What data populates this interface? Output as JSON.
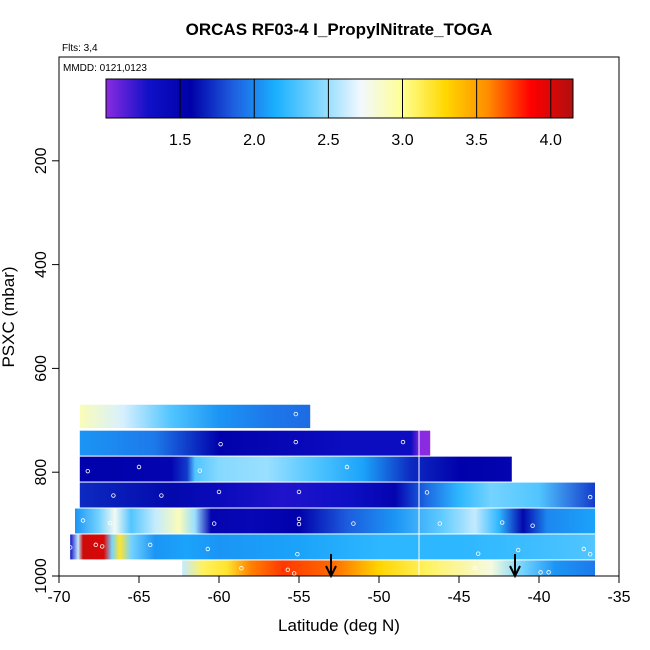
{
  "chart_data": {
    "type": "heatmap",
    "title": "ORCAS RF03-4 I_PropylNitrate_TOGA",
    "flights_label": "Flts: 3,4",
    "dates_label": "MMDD: 0121,0123",
    "xlabel": "Latitude (deg N)",
    "ylabel": "PSXC (mbar)",
    "xlim": [
      -70,
      -35
    ],
    "ylim": [
      1000,
      0
    ],
    "x_ticks": [
      -70,
      -65,
      -60,
      -55,
      -50,
      -45,
      -40,
      -35
    ],
    "y_ticks": [
      200,
      400,
      600,
      800,
      1000
    ],
    "colorbar": {
      "range": [
        1.0,
        4.15
      ],
      "ticks": [
        1.5,
        2.0,
        2.5,
        3.0,
        3.5,
        4.0
      ],
      "tick_labels": [
        "1.5",
        "2.0",
        "2.5",
        "3.0",
        "3.5",
        "4.0"
      ],
      "colors": [
        "#8a2be2",
        "#1010c8",
        "#0000a8",
        "#1e5fe0",
        "#1ab0ff",
        "#7fd7ff",
        "#f2f8ff",
        "#ffff90",
        "#ffd700",
        "#ff8c00",
        "#ff0000",
        "#b01010"
      ]
    },
    "bands": [
      {
        "p_top": 670,
        "p_bot": 715,
        "x_start": -68.7,
        "x_end": -54.3,
        "stops": [
          [
            -68.7,
            2.9
          ],
          [
            -66,
            2.65
          ],
          [
            -63,
            2.3
          ],
          [
            -60,
            2.05
          ],
          [
            -57,
            1.95
          ],
          [
            -54.3,
            1.9
          ]
        ]
      },
      {
        "p_top": 720,
        "p_bot": 768,
        "x_start": -68.7,
        "x_end": -46.8,
        "stops": [
          [
            -68.7,
            2.05
          ],
          [
            -64,
            1.95
          ],
          [
            -60,
            1.55
          ],
          [
            -56,
            1.45
          ],
          [
            -52,
            1.35
          ],
          [
            -48,
            1.35
          ],
          [
            -47.4,
            1.0
          ],
          [
            -46.8,
            1.0
          ]
        ]
      },
      {
        "p_top": 770,
        "p_bot": 818,
        "x_start": -68.7,
        "x_end": -41.7,
        "stops": [
          [
            -68.7,
            1.55
          ],
          [
            -63,
            1.5
          ],
          [
            -62,
            1.75
          ],
          [
            -61.5,
            2.3
          ],
          [
            -60,
            2.45
          ],
          [
            -57,
            2.5
          ],
          [
            -54,
            2.3
          ],
          [
            -51,
            2.1
          ],
          [
            -48,
            1.7
          ],
          [
            -45,
            1.55
          ],
          [
            -41.7,
            1.5
          ]
        ]
      },
      {
        "p_top": 820,
        "p_bot": 868,
        "x_start": -68.7,
        "x_end": -36.5,
        "stops": [
          [
            -68.7,
            1.7
          ],
          [
            -66,
            1.65
          ],
          [
            -63,
            1.6
          ],
          [
            -60,
            1.4
          ],
          [
            -56,
            1.25
          ],
          [
            -52,
            1.3
          ],
          [
            -49,
            1.5
          ],
          [
            -47,
            1.9
          ],
          [
            -45,
            2.2
          ],
          [
            -43,
            2.4
          ],
          [
            -40,
            2.3
          ],
          [
            -36.5,
            1.75
          ]
        ]
      },
      {
        "p_top": 870,
        "p_bot": 918,
        "x_start": -69.0,
        "x_end": -36.5,
        "stops": [
          [
            -69.0,
            2.05
          ],
          [
            -67.5,
            2.4
          ],
          [
            -66.5,
            2.75
          ],
          [
            -65.5,
            2.3
          ],
          [
            -64,
            2.6
          ],
          [
            -62.5,
            2.9
          ],
          [
            -61.5,
            2.5
          ],
          [
            -60.5,
            1.5
          ],
          [
            -58,
            1.45
          ],
          [
            -55,
            1.55
          ],
          [
            -52,
            1.85
          ],
          [
            -49,
            2.05
          ],
          [
            -46,
            2.35
          ],
          [
            -44,
            2.6
          ],
          [
            -42.5,
            2.2
          ],
          [
            -41,
            1.6
          ],
          [
            -39.5,
            2.0
          ],
          [
            -36.5,
            2.1
          ]
        ]
      },
      {
        "p_top": 920,
        "p_bot": 968,
        "x_start": -69.3,
        "x_end": -36.5,
        "stops": [
          [
            -69.3,
            1.3
          ],
          [
            -68.8,
            2.6
          ],
          [
            -68.5,
            4.05
          ],
          [
            -67.2,
            4.0
          ],
          [
            -66.7,
            2.4
          ],
          [
            -66.2,
            3.2
          ],
          [
            -65.5,
            2.4
          ],
          [
            -64,
            2.05
          ],
          [
            -62,
            2.1
          ],
          [
            -60,
            2.05
          ],
          [
            -55,
            2.1
          ],
          [
            -50,
            2.2
          ],
          [
            -45,
            2.2
          ],
          [
            -40,
            2.25
          ],
          [
            -36.5,
            2.3
          ]
        ]
      },
      {
        "p_top": 970,
        "p_bot": 1000,
        "x_start": -62.3,
        "x_end": -36.5,
        "stops": [
          [
            -62.3,
            2.6
          ],
          [
            -61,
            3.1
          ],
          [
            -59.5,
            3.2
          ],
          [
            -58,
            3.6
          ],
          [
            -56,
            3.75
          ],
          [
            -53,
            3.65
          ],
          [
            -50,
            3.3
          ],
          [
            -47,
            3.1
          ],
          [
            -43,
            2.8
          ],
          [
            -41,
            2.4
          ],
          [
            -39,
            2.05
          ],
          [
            -36.5,
            1.95
          ]
        ]
      }
    ],
    "vertical_lines": [
      -47.5
    ],
    "arrows": [
      -53.0,
      -41.5
    ],
    "points": [
      [
        -55.2,
        688
      ],
      [
        -59.9,
        746
      ],
      [
        -55.2,
        742
      ],
      [
        -48.5,
        742
      ],
      [
        -65.0,
        790
      ],
      [
        -61.2,
        797
      ],
      [
        -52.0,
        790
      ],
      [
        -68.2,
        798
      ],
      [
        -66.6,
        845
      ],
      [
        -63.6,
        845
      ],
      [
        -60.0,
        838
      ],
      [
        -55.0,
        838
      ],
      [
        -47.0,
        839
      ],
      [
        -36.8,
        848
      ],
      [
        -68.5,
        893
      ],
      [
        -66.8,
        898
      ],
      [
        -60.3,
        899
      ],
      [
        -55.0,
        900
      ],
      [
        -55.0,
        890
      ],
      [
        -51.6,
        899
      ],
      [
        -46.2,
        899
      ],
      [
        -42.3,
        897
      ],
      [
        -40.4,
        903
      ],
      [
        -69.3,
        945
      ],
      [
        -67.7,
        940
      ],
      [
        -67.3,
        943
      ],
      [
        -64.3,
        940
      ],
      [
        -60.7,
        948
      ],
      [
        -55.1,
        958
      ],
      [
        -43.8,
        957
      ],
      [
        -41.3,
        950
      ],
      [
        -37.2,
        948
      ],
      [
        -36.8,
        958
      ],
      [
        -58.6,
        985
      ],
      [
        -55.7,
        988
      ],
      [
        -55.3,
        995
      ],
      [
        -44.0,
        985
      ],
      [
        -39.9,
        993
      ],
      [
        -39.4,
        993
      ]
    ]
  }
}
